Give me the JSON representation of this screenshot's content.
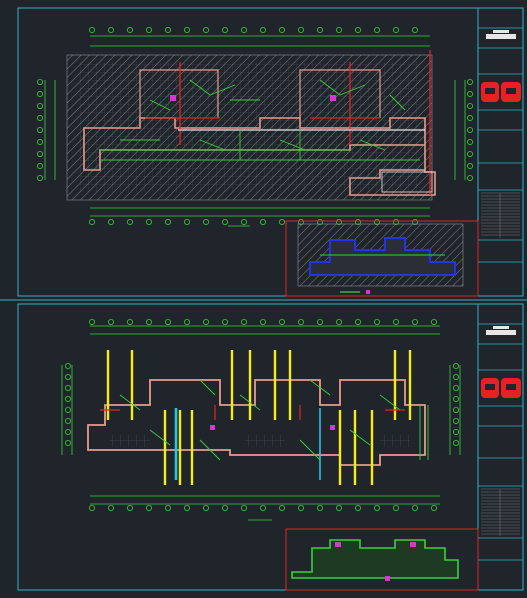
{
  "colors": {
    "background": "#20252c",
    "frame": "#2fb3c8",
    "dimension_line": "#39d039",
    "wall": "#e99a8c",
    "pipe_red": "#e52222",
    "pipe_yellow": "#f2ec1a",
    "pipe_cyan": "#25c7e6",
    "pipe_blue": "#2433e6",
    "magenta": "#d03ad0",
    "white": "#e6e6e6",
    "hatch": "#8a8f96",
    "dark_fill": "#3a3f47"
  },
  "sheets": [
    {
      "id": "sheet-upper",
      "title_block_logo_icon": "red-logo-icon"
    },
    {
      "id": "sheet-lower",
      "title_block_logo_icon": "red-logo-icon"
    }
  ]
}
